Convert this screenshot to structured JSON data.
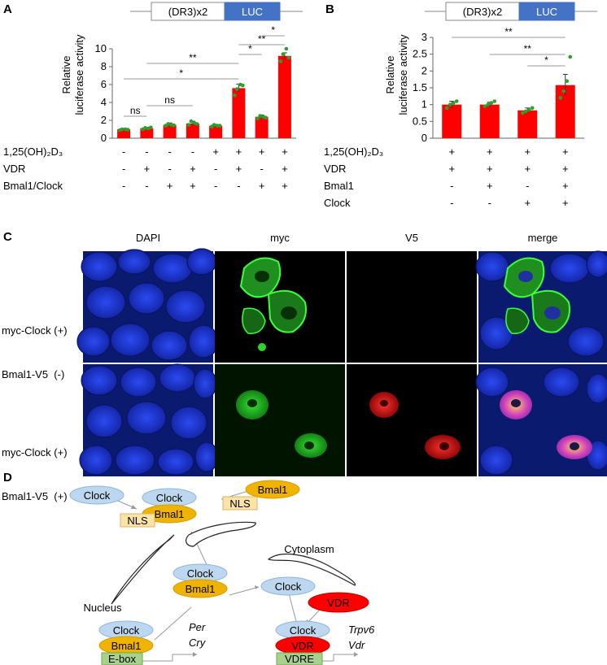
{
  "panel_letters": {
    "a": "A",
    "b": "B",
    "c": "C",
    "d": "D"
  },
  "construct": {
    "element": "(DR3)x2",
    "reporter": "LUC"
  },
  "y_label": [
    "Relative",
    "luciferase activity"
  ],
  "chart_data": [
    {
      "type": "bar",
      "panel": "A",
      "ylabel": "Relative luciferase activity",
      "ylim": [
        0,
        10
      ],
      "yticks": [
        "0",
        "2",
        "4",
        "6",
        "8",
        "10"
      ],
      "categories": [
        "1",
        "2",
        "3",
        "4",
        "5",
        "6",
        "7",
        "8"
      ],
      "values": [
        1.0,
        1.1,
        1.5,
        1.65,
        1.4,
        5.6,
        2.4,
        9.2
      ],
      "errors": [
        0.1,
        0.1,
        0.2,
        0.25,
        0.15,
        0.45,
        0.2,
        0.35
      ],
      "points": [
        [
          0.9,
          1.0,
          1.0,
          0.95
        ],
        [
          1.0,
          1.15,
          1.1,
          1.2
        ],
        [
          1.4,
          1.6,
          1.5,
          1.45
        ],
        [
          1.5,
          1.9,
          1.7,
          1.6
        ],
        [
          1.3,
          1.5,
          1.4,
          1.4
        ],
        [
          4.8,
          5.5,
          6.0,
          5.9
        ],
        [
          2.2,
          2.5,
          2.4,
          2.3
        ],
        [
          8.6,
          9.4,
          10.0,
          9.0
        ]
      ],
      "condition_rows": [
        {
          "label": "1,25(OH)₂D₃",
          "values": [
            "-",
            "-",
            "-",
            "-",
            "+",
            "+",
            "+",
            "+"
          ]
        },
        {
          "label": "VDR",
          "values": [
            "-",
            "+",
            "-",
            "+",
            "-",
            "+",
            "-",
            "+"
          ]
        },
        {
          "label": "Bmal1/Clock",
          "values": [
            "-",
            "-",
            "+",
            "+",
            "-",
            "-",
            "+",
            "+"
          ]
        }
      ],
      "brackets": [
        {
          "from": 1,
          "to": 2,
          "label": "ns"
        },
        {
          "from": 2,
          "to": 4,
          "label": "ns"
        },
        {
          "from": 1,
          "to": 6,
          "label": "*"
        },
        {
          "from": 2,
          "to": 6,
          "label": "**"
        },
        {
          "from": 6,
          "to": 7,
          "label": "*"
        },
        {
          "from": 6,
          "to": 8,
          "label": "**"
        },
        {
          "from": 7,
          "to": 8,
          "label": "*"
        }
      ]
    },
    {
      "type": "bar",
      "panel": "B",
      "ylabel": "Relative luciferase activity",
      "ylim": [
        0,
        3
      ],
      "yticks": [
        "0",
        "0.5",
        "1",
        "1.5",
        "2",
        "2.5",
        "3"
      ],
      "categories": [
        "1",
        "2",
        "3",
        "4"
      ],
      "values": [
        1.0,
        1.0,
        0.83,
        1.58
      ],
      "errors": [
        0.1,
        0.07,
        0.07,
        0.32
      ],
      "points": [
        [
          0.9,
          1.0,
          1.05,
          1.1
        ],
        [
          0.95,
          1.0,
          1.05,
          1.1
        ],
        [
          0.75,
          0.8,
          0.85,
          0.9
        ],
        [
          1.2,
          1.4,
          1.7,
          2.42
        ]
      ],
      "condition_rows": [
        {
          "label": "1,25(OH)₂D₃",
          "values": [
            "+",
            "+",
            "+",
            "+"
          ]
        },
        {
          "label": "VDR",
          "values": [
            "+",
            "+",
            "+",
            "+"
          ]
        },
        {
          "label": "Bmal1",
          "values": [
            "-",
            "+",
            "-",
            "+"
          ]
        },
        {
          "label": "Clock",
          "values": [
            "-",
            "-",
            "+",
            "+"
          ]
        }
      ],
      "brackets": [
        {
          "from": 3,
          "to": 4,
          "label": "*"
        },
        {
          "from": 2,
          "to": 4,
          "label": "**"
        },
        {
          "from": 1,
          "to": 4,
          "label": "**"
        }
      ]
    }
  ],
  "microscopy": {
    "columns": [
      "DAPI",
      "myc",
      "V5",
      "merge"
    ],
    "rows": [
      {
        "line1": "myc-Clock (+)",
        "line2": "Bmal1-V5  (-)"
      },
      {
        "line1": "myc-Clock (+)",
        "line2": "Bmal1-V5  (+)"
      }
    ]
  },
  "diagram": {
    "clock": "Clock",
    "bmal1": "Bmal1",
    "nls": "NLS",
    "vdr": "VDR",
    "ebox": "E-box",
    "vdre": "VDRE",
    "cytoplasm": "Cytoplasm",
    "nucleus": "Nucleus",
    "genes_left": [
      "Per",
      "Cry"
    ],
    "genes_right": [
      "Trpv6",
      "Vdr"
    ]
  },
  "colors": {
    "bar": "#ff0000",
    "points": "#2ca02c",
    "luc_box": "#4472c4",
    "dapi": "#1a2fd6",
    "myc": "#22cc22",
    "v5": "#e00000",
    "clock_fill": "#bdd7ee",
    "bmal1_fill": "#f0b400",
    "nls_fill": "#fce4a8",
    "box_fill": "#a9d18e",
    "vdr_fill": "#ff0000"
  }
}
